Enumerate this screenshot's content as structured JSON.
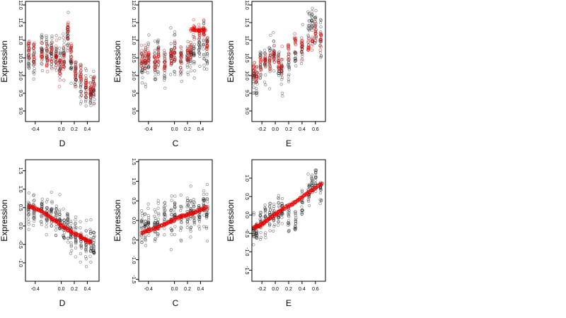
{
  "chart_data": [
    {
      "type": "scatter",
      "xlabel": "D",
      "ylabel": "Expression",
      "xlim": [
        -0.55,
        0.58
      ],
      "ylim": [
        8.7,
        12.1
      ],
      "xticks": [
        "-0.4",
        "0.0",
        "0.2",
        "0.4"
      ],
      "xtick_values": [
        -0.4,
        0.0,
        0.2,
        0.4
      ],
      "yticks": [
        "9.0",
        "9.5",
        "10.0",
        "10.5",
        "11.0",
        "11.5",
        "12.0"
      ],
      "ytick_values": [
        9.0,
        9.5,
        10.0,
        10.5,
        11.0,
        11.5,
        12.0
      ],
      "gen": {
        "xs": [
          -0.5,
          -0.42,
          -0.3,
          -0.22,
          -0.15,
          -0.08,
          -0.02,
          0.04,
          0.1,
          0.15,
          0.22,
          0.3,
          0.38,
          0.45,
          0.5
        ],
        "n": 22,
        "spread": 0.55,
        "black_center": [
          10.6,
          10.5,
          10.7,
          10.6,
          10.7,
          10.6,
          10.4,
          10.5,
          11.1,
          10.5,
          10.0,
          9.8,
          9.6,
          9.5,
          9.6
        ],
        "red_center": [
          10.8,
          10.6,
          10.7,
          10.5,
          10.6,
          10.5,
          10.3,
          10.4,
          11.2,
          10.6,
          10.0,
          9.9,
          9.7,
          9.6,
          9.7
        ],
        "red_spread": 0.35,
        "red_line": []
      }
    },
    {
      "type": "scatter",
      "xlabel": "C",
      "ylabel": "Expression",
      "xlim": [
        -0.55,
        0.58
      ],
      "ylim": [
        8.7,
        12.1
      ],
      "xticks": [
        "-0.4",
        "0.0",
        "0.2",
        "0.4"
      ],
      "xtick_values": [
        -0.4,
        0.0,
        0.2,
        0.4
      ],
      "yticks": [
        "9.0",
        "9.5",
        "10.0",
        "10.5",
        "11.0",
        "11.5",
        "12.0"
      ],
      "ytick_values": [
        9.0,
        9.5,
        10.0,
        10.5,
        11.0,
        11.5,
        12.0
      ],
      "gen": {
        "xs": [
          -0.5,
          -0.45,
          -0.4,
          -0.3,
          -0.25,
          -0.15,
          -0.05,
          0.0,
          0.1,
          0.2,
          0.25,
          0.3,
          0.38,
          0.45,
          0.5
        ],
        "n": 20,
        "spread": 0.6,
        "black_center": [
          10.2,
          10.4,
          10.5,
          10.3,
          10.6,
          10.3,
          10.5,
          10.6,
          10.4,
          10.5,
          10.6,
          10.7,
          10.8,
          10.9,
          10.7
        ],
        "red_center": [
          10.4,
          10.5,
          10.6,
          10.3,
          10.5,
          10.3,
          10.6,
          10.6,
          10.4,
          10.6,
          10.7,
          11.3,
          11.3,
          11.3,
          10.9
        ],
        "red_spread": 0.3,
        "red_line": [
          [
            0.25,
            11.3
          ],
          [
            0.48,
            11.3
          ]
        ]
      }
    },
    {
      "type": "scatter",
      "xlabel": "E",
      "ylabel": "Expression",
      "xlim": [
        -0.35,
        0.75
      ],
      "ylim": [
        8.7,
        12.1
      ],
      "xticks": [
        "-0.2",
        "0.0",
        "0.2",
        "0.4",
        "0.6"
      ],
      "xtick_values": [
        -0.2,
        0.0,
        0.2,
        0.4,
        0.6
      ],
      "yticks": [
        "9.0",
        "9.5",
        "10.0",
        "10.5",
        "11.0",
        "11.5",
        "12.0"
      ],
      "ytick_values": [
        9.0,
        9.5,
        10.0,
        10.5,
        11.0,
        11.5,
        12.0
      ],
      "gen": {
        "xs": [
          -0.32,
          -0.28,
          -0.22,
          -0.15,
          -0.08,
          -0.02,
          0.05,
          0.1,
          0.2,
          0.3,
          0.4,
          0.5,
          0.55,
          0.6,
          0.68
        ],
        "n": 18,
        "spread": 0.6,
        "black_center": [
          10.0,
          9.9,
          10.2,
          10.4,
          10.5,
          10.6,
          10.3,
          10.1,
          10.4,
          10.6,
          10.8,
          11.3,
          11.5,
          11.3,
          11.1
        ],
        "red_center": [
          10.2,
          10.0,
          10.3,
          10.4,
          10.5,
          10.6,
          10.4,
          10.3,
          10.7,
          10.9,
          10.9,
          10.8,
          10.9,
          11.3,
          11.0
        ],
        "red_spread": 0.3,
        "red_line": []
      }
    },
    {
      "type": "scatter",
      "xlabel": "D",
      "ylabel": "Expression",
      "xlim": [
        -0.55,
        0.58
      ],
      "ylim": [
        -1.5,
        1.8
      ],
      "xticks": [
        "-0.4",
        "0.0",
        "0.2",
        "0.4"
      ],
      "xtick_values": [
        -0.4,
        0.0,
        0.2,
        0.4
      ],
      "yticks": [
        "-1.0",
        "-0.5",
        "0.0",
        "0.5",
        "1.0",
        "1.5"
      ],
      "ytick_values": [
        -1.0,
        -0.5,
        0.0,
        0.5,
        1.0,
        1.5
      ],
      "gen": {
        "xs": [
          -0.5,
          -0.42,
          -0.3,
          -0.22,
          -0.15,
          -0.08,
          -0.02,
          0.04,
          0.1,
          0.15,
          0.22,
          0.3,
          0.38,
          0.45,
          0.5
        ],
        "n": 22,
        "spread": 0.5,
        "black_center": [
          0.4,
          0.5,
          0.4,
          0.3,
          0.3,
          0.2,
          0.1,
          -0.1,
          0.1,
          -0.2,
          -0.3,
          -0.4,
          -0.5,
          -0.5,
          -0.6
        ],
        "red_center": [],
        "red_spread": 0.0,
        "red_line": [
          [
            -0.5,
            0.55
          ],
          [
            -0.3,
            0.4
          ],
          [
            -0.1,
            0.15
          ],
          [
            0.1,
            -0.1
          ],
          [
            0.3,
            -0.3
          ],
          [
            0.45,
            -0.45
          ]
        ]
      }
    },
    {
      "type": "scatter",
      "xlabel": "C",
      "ylabel": "Expression",
      "xlim": [
        -0.55,
        0.58
      ],
      "ylim": [
        -1.55,
        1.55
      ],
      "xticks": [
        "-0.4",
        "0.0",
        "0.2",
        "0.4"
      ],
      "xtick_values": [
        -0.4,
        0.0,
        0.2,
        0.4
      ],
      "yticks": [
        "-1.5",
        "-1.0",
        "-0.5",
        "0.0",
        "0.5",
        "1.0",
        "1.5"
      ],
      "ytick_values": [
        -1.5,
        -1.0,
        -0.5,
        0.0,
        0.5,
        1.0,
        1.5
      ],
      "gen": {
        "xs": [
          -0.5,
          -0.45,
          -0.4,
          -0.3,
          -0.25,
          -0.15,
          -0.05,
          0.0,
          0.1,
          0.2,
          0.25,
          0.3,
          0.38,
          0.45,
          0.5
        ],
        "n": 20,
        "spread": 0.55,
        "black_center": [
          -0.2,
          -0.2,
          -0.1,
          -0.1,
          -0.1,
          0.0,
          0.0,
          0.1,
          0.0,
          0.1,
          0.1,
          0.2,
          0.2,
          0.3,
          0.3
        ],
        "red_center": [],
        "red_spread": 0.0,
        "red_line": [
          [
            -0.5,
            -0.3
          ],
          [
            -0.3,
            -0.2
          ],
          [
            -0.1,
            -0.05
          ],
          [
            0.1,
            0.1
          ],
          [
            0.3,
            0.2
          ],
          [
            0.5,
            0.35
          ]
        ]
      }
    },
    {
      "type": "scatter",
      "xlabel": "E",
      "ylabel": "Expression",
      "xlim": [
        -0.35,
        0.75
      ],
      "ylim": [
        -1.8,
        1.5
      ],
      "xticks": [
        "-0.2",
        "0.0",
        "0.2",
        "0.4",
        "0.6"
      ],
      "xtick_values": [
        -0.2,
        0.0,
        0.2,
        0.4,
        0.6
      ],
      "yticks": [
        "-1.5",
        "-1.0",
        "-0.5",
        "0.0",
        "0.5",
        "1.0"
      ],
      "ytick_values": [
        -1.5,
        -1.0,
        -0.5,
        0.0,
        0.5,
        1.0
      ],
      "gen": {
        "xs": [
          -0.32,
          -0.28,
          -0.22,
          -0.15,
          -0.08,
          -0.02,
          0.05,
          0.1,
          0.2,
          0.3,
          0.4,
          0.5,
          0.55,
          0.6,
          0.68
        ],
        "n": 18,
        "spread": 0.45,
        "black_center": [
          -0.5,
          -0.4,
          -0.2,
          -0.1,
          0.0,
          0.0,
          0.1,
          0.1,
          -0.1,
          -0.2,
          0.3,
          0.6,
          0.8,
          0.9,
          0.7
        ],
        "red_center": [],
        "red_spread": 0.0,
        "red_line": [
          [
            -0.32,
            -0.35
          ],
          [
            -0.2,
            -0.25
          ],
          [
            -0.05,
            -0.05
          ],
          [
            0.1,
            0.15
          ],
          [
            0.3,
            0.35
          ],
          [
            0.5,
            0.6
          ],
          [
            0.7,
            0.85
          ]
        ]
      }
    }
  ]
}
